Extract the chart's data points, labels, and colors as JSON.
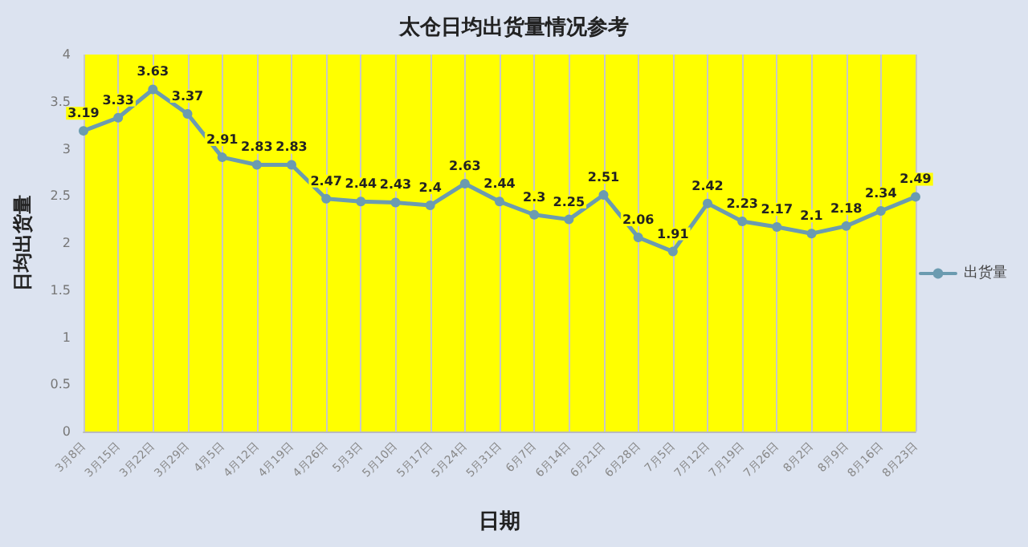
{
  "chart_data": {
    "type": "line",
    "title": "太仓日均出货量情况参考",
    "xlabel": "日期",
    "ylabel": "日均出货量",
    "categories": [
      "3月8日",
      "3月15日",
      "3月22日",
      "3月29日",
      "4月5日",
      "4月12日",
      "4月19日",
      "4月26日",
      "5月3日",
      "5月10日",
      "5月17日",
      "5月24日",
      "5月31日",
      "6月7日",
      "6月14日",
      "6月21日",
      "6月28日",
      "7月5日",
      "7月12日",
      "7月19日",
      "7月26日",
      "8月2日",
      "8月9日",
      "8月16日",
      "8月23日"
    ],
    "series": [
      {
        "name": "出货量",
        "color": "#6b9bb0",
        "values": [
          3.19,
          3.33,
          3.63,
          3.37,
          2.91,
          2.83,
          2.83,
          2.47,
          2.44,
          2.43,
          2.4,
          2.63,
          2.44,
          2.3,
          2.25,
          2.51,
          2.06,
          1.91,
          2.42,
          2.23,
          2.17,
          2.1,
          2.18,
          2.34,
          2.49
        ]
      }
    ],
    "ylim": [
      0,
      4
    ],
    "yticks": [
      0,
      0.5,
      1,
      1.5,
      2,
      2.5,
      3,
      3.5,
      4
    ],
    "data_labels": true,
    "grid": "x",
    "legend": "right",
    "marker": "circle",
    "line_style": "solid"
  }
}
